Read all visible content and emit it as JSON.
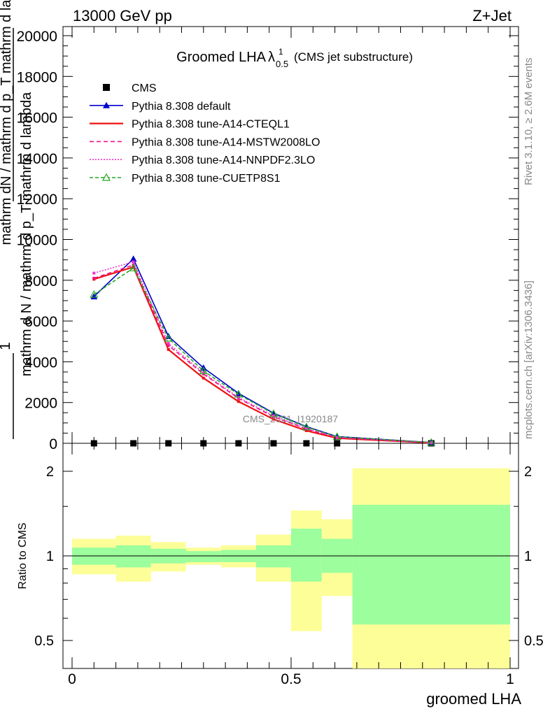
{
  "header": {
    "left": "13000 GeV pp",
    "right": "Z+Jet",
    "title_main": "Groomed LHA",
    "title_lambda": "λ",
    "title_sup": "1",
    "title_sub": "0.5",
    "title_note": "(CMS jet substructure)"
  },
  "side_labels": {
    "rivet": "Rivet 3.1.10, ≥ 2.6M events",
    "mcplots": "mcplots.cern.ch [arXiv:1306.3436]"
  },
  "watermark": "CMS_2021_I1920187",
  "chart_data": [
    {
      "type": "line",
      "panel": "main",
      "ylabel_top": "1",
      "ylabel_main": "mathrm d N / mathrm d p_T mathrm d lambda",
      "ylabel_overlay": "mathrm dN / mathrm d p_T mathrm d lambda",
      "ylim": [
        0,
        20500
      ],
      "yticks": [
        0,
        2000,
        4000,
        6000,
        8000,
        10000,
        12000,
        14000,
        16000,
        18000,
        20000
      ],
      "xlim": [
        0,
        1
      ],
      "grid": false,
      "legend_position": "top-left",
      "x": [
        0.05,
        0.14,
        0.22,
        0.3,
        0.38,
        0.46,
        0.535,
        0.605,
        0.82
      ],
      "series": [
        {
          "name": "CMS",
          "color": "#000000",
          "marker": "square",
          "values": [
            0,
            0,
            0,
            0,
            0,
            0,
            0,
            0,
            0
          ]
        },
        {
          "name": "Pythia 8.308 default",
          "color": "#0000cc",
          "marker": "triangle",
          "dash": "",
          "values": [
            7200,
            9050,
            5250,
            3700,
            2450,
            1480,
            820,
            330,
            40
          ]
        },
        {
          "name": "Pythia 8.308 tune-A14-CTEQL1",
          "color": "#ee1111",
          "marker": "none",
          "dash": "",
          "values": [
            8050,
            8650,
            4600,
            3200,
            2050,
            1180,
            620,
            250,
            25
          ]
        },
        {
          "name": "Pythia 8.308 tune-A14-MSTW2008LO",
          "color": "#ee1188",
          "marker": "none",
          "dash": "6,4",
          "values": [
            8100,
            8750,
            4800,
            3400,
            2200,
            1300,
            700,
            280,
            30
          ]
        },
        {
          "name": "Pythia 8.308 tune-A14-NNPDF2.3LO",
          "color": "#ee33cc",
          "marker": "none",
          "dash": "2,2",
          "values": [
            8350,
            8900,
            4900,
            3450,
            2250,
            1350,
            730,
            290,
            30
          ]
        },
        {
          "name": "Pythia 8.308 tune-CUETP8S1",
          "color": "#22aa22",
          "marker": "triangle-open",
          "dash": "5,3",
          "values": [
            7300,
            8600,
            5150,
            3550,
            2400,
            1450,
            800,
            320,
            40
          ]
        }
      ]
    },
    {
      "type": "band",
      "panel": "ratio",
      "ylabel": "Ratio to CMS",
      "xlabel": "groomed LHA",
      "xlim": [
        0,
        1
      ],
      "ylim": [
        0.38,
        2.25
      ],
      "yticks": [
        0.5,
        1,
        2
      ],
      "xticks": [
        0,
        0.5,
        1
      ],
      "xtick_labels": [
        "0",
        "0.5",
        "1"
      ],
      "bins": [
        {
          "x0": 0.0,
          "x1": 0.1,
          "stat": [
            0.93,
            1.07
          ],
          "total": [
            0.86,
            1.15
          ]
        },
        {
          "x0": 0.1,
          "x1": 0.18,
          "stat": [
            0.91,
            1.09
          ],
          "total": [
            0.81,
            1.18
          ]
        },
        {
          "x0": 0.18,
          "x1": 0.26,
          "stat": [
            0.94,
            1.06
          ],
          "total": [
            0.88,
            1.12
          ]
        },
        {
          "x0": 0.26,
          "x1": 0.34,
          "stat": [
            0.95,
            1.04
          ],
          "total": [
            0.93,
            1.07
          ]
        },
        {
          "x0": 0.34,
          "x1": 0.42,
          "stat": [
            0.95,
            1.05
          ],
          "total": [
            0.91,
            1.09
          ]
        },
        {
          "x0": 0.42,
          "x1": 0.5,
          "stat": [
            0.91,
            1.09
          ],
          "total": [
            0.81,
            1.19
          ]
        },
        {
          "x0": 0.5,
          "x1": 0.57,
          "stat": [
            0.81,
            1.25
          ],
          "total": [
            0.54,
            1.45
          ]
        },
        {
          "x0": 0.57,
          "x1": 0.64,
          "stat": [
            0.87,
            1.15
          ],
          "total": [
            0.72,
            1.35
          ]
        },
        {
          "x0": 0.64,
          "x1": 1.0,
          "stat": [
            0.57,
            1.52
          ],
          "total": [
            0.35,
            2.05
          ]
        }
      ],
      "reference": 1
    }
  ],
  "colors": {
    "stat_band": "#9cfe9c",
    "total_band": "#fdfe98",
    "axis": "#000000"
  }
}
